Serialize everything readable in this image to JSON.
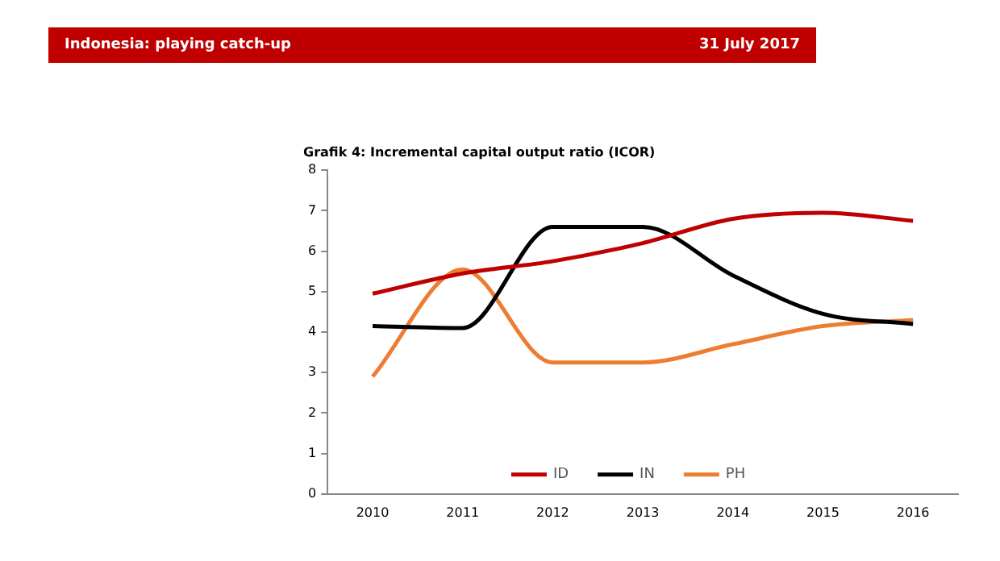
{
  "chart_data": {
    "type": "line",
    "title": "Indonesia: playing catch-up",
    "subtitle": "Grafik 4: Incremental capital output ratio (ICOR)",
    "annotations": [
      "31 July 2017"
    ],
    "categories": [
      "2010",
      "2011",
      "2012",
      "2013",
      "2014",
      "2015",
      "2016"
    ],
    "series": [
      {
        "name": "ID",
        "color": "#c00000",
        "values": [
          4.95,
          5.45,
          5.75,
          6.2,
          6.8,
          6.95,
          6.75
        ]
      },
      {
        "name": "IN",
        "color": "#000000",
        "values": [
          4.15,
          4.1,
          6.6,
          6.6,
          5.4,
          4.45,
          4.2
        ]
      },
      {
        "name": "PH",
        "color": "#ed7d31",
        "values": [
          2.9,
          5.55,
          3.25,
          3.25,
          3.7,
          4.15,
          4.3
        ]
      }
    ],
    "ylim": [
      0,
      8
    ],
    "yticks": [
      0,
      1,
      2,
      3,
      4,
      5,
      6,
      7,
      8
    ],
    "grid": false,
    "legend": "bottom",
    "marker": "none",
    "line_style": "solid"
  }
}
